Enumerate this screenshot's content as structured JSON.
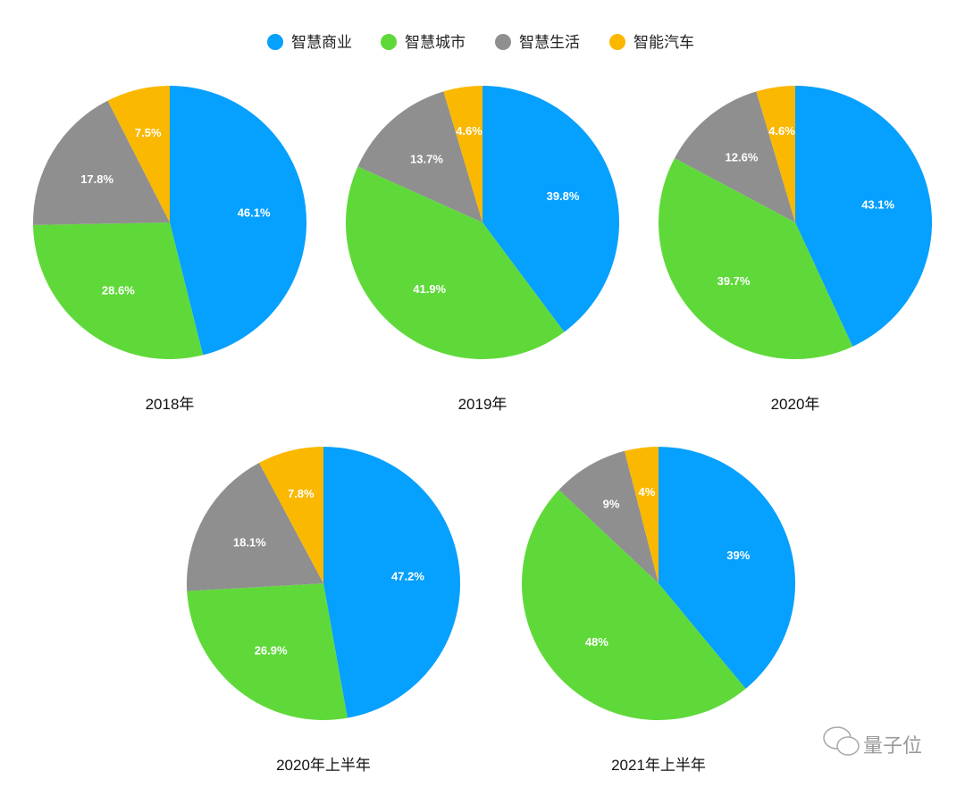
{
  "chart_data": [
    {
      "type": "pie",
      "title": "2018年",
      "categories": [
        "智慧商业",
        "智慧城市",
        "智慧生活",
        "智能汽车"
      ],
      "values": [
        46.1,
        28.6,
        17.8,
        7.5
      ],
      "labels": [
        "46.1%",
        "28.6%",
        "17.8%",
        "7.5%"
      ]
    },
    {
      "type": "pie",
      "title": "2019年",
      "categories": [
        "智慧商业",
        "智慧城市",
        "智慧生活",
        "智能汽车"
      ],
      "values": [
        39.8,
        41.9,
        13.7,
        4.6
      ],
      "labels": [
        "39.8%",
        "41.9%",
        "13.7%",
        "4.6%"
      ]
    },
    {
      "type": "pie",
      "title": "2020年",
      "categories": [
        "智慧商业",
        "智慧城市",
        "智慧生活",
        "智能汽车"
      ],
      "values": [
        43.1,
        39.7,
        12.6,
        4.6
      ],
      "labels": [
        "43.1%",
        "39.7%",
        "12.6%",
        "4.6%"
      ]
    },
    {
      "type": "pie",
      "title": "2020年上半年",
      "categories": [
        "智慧商业",
        "智慧城市",
        "智慧生活",
        "智能汽车"
      ],
      "values": [
        47.2,
        26.9,
        18.1,
        7.8
      ],
      "labels": [
        "47.2%",
        "26.9%",
        "18.1%",
        "7.8%"
      ]
    },
    {
      "type": "pie",
      "title": "2021年上半年",
      "categories": [
        "智慧商业",
        "智慧城市",
        "智慧生活",
        "智能汽车"
      ],
      "values": [
        39,
        48,
        9,
        4
      ],
      "labels": [
        "39%",
        "48%",
        "9%",
        "4%"
      ]
    }
  ],
  "legend": {
    "placement": "top",
    "items": [
      {
        "label": "智慧商业",
        "color": "#06a0fe"
      },
      {
        "label": "智慧城市",
        "color": "#5fd93a"
      },
      {
        "label": "智慧生活",
        "color": "#8f8f8f"
      },
      {
        "label": "智能汽车",
        "color": "#fbb800"
      }
    ]
  },
  "watermark": {
    "text": "量子位",
    "icon": "wechat-icon"
  }
}
